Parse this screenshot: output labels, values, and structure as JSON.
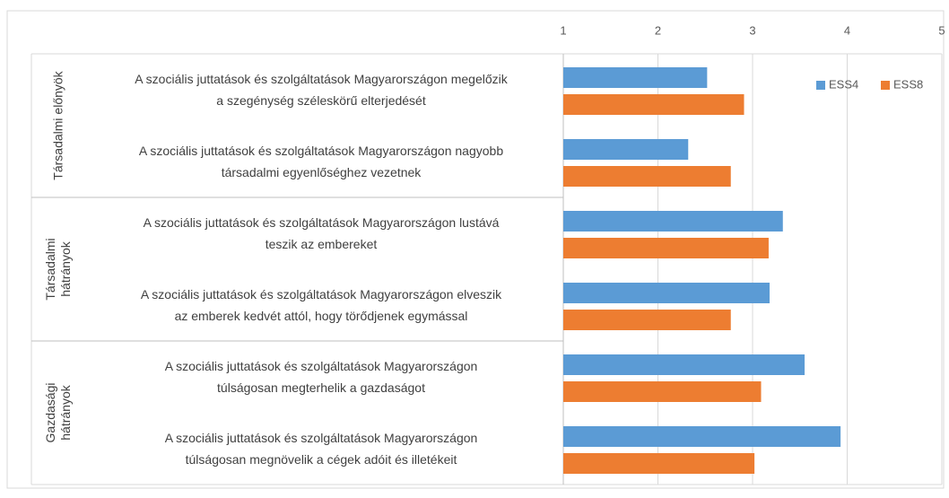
{
  "chart_data": {
    "type": "bar",
    "orientation": "horizontal",
    "categories": [
      "A szociális juttatások és szolgáltatások Magyarországon megelőzik\na szegénység széleskörű elterjedését",
      "A szociális juttatások és szolgáltatások Magyarországon nagyobb\ntársadalmi egyenlőséghez vezetnek",
      "A szociális juttatások és szolgáltatások Magyarországon lustává\nteszik az embereket",
      "A szociális juttatások és szolgáltatások Magyarországon elveszik\naz emberek kedvét attól, hogy törődjenek egymással",
      "A szociális juttatások és szolgáltatások Magyarországon\ntúlságosan megterhelik a gazdaságot",
      "A szociális juttatások és szolgáltatások Magyarországon\ntúlságosan megnövelik a cégek adóit és illetékeit"
    ],
    "groups": [
      "Társadalmi előnyök",
      "Társadalmi\nhátrányok",
      "Gazdasági\nhátrányok"
    ],
    "series": [
      {
        "name": "ESS4",
        "color": "#5b9bd5",
        "values": [
          2.52,
          2.32,
          3.32,
          3.18,
          3.55,
          3.93
        ]
      },
      {
        "name": "ESS8",
        "color": "#ed7d31",
        "values": [
          2.91,
          2.77,
          3.17,
          2.77,
          3.09,
          3.02
        ]
      }
    ],
    "xlim": [
      1,
      5
    ],
    "xticks": [
      1,
      2,
      3,
      4,
      5
    ],
    "grid": true,
    "legend": "top-right"
  }
}
